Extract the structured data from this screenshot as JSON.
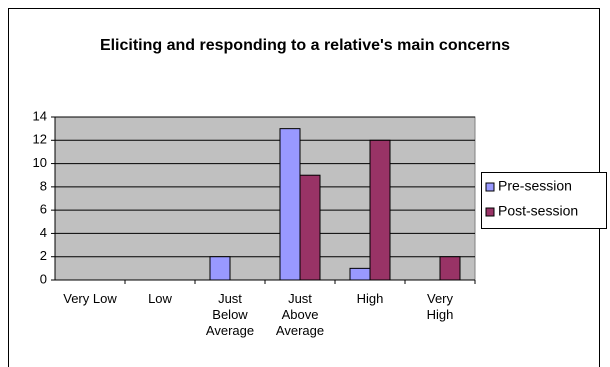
{
  "chart_data": {
    "type": "bar",
    "title": "Eliciting and responding to a relative's main concerns",
    "categories": [
      "Very Low",
      "Low",
      "Just Below Average",
      "Just Above Average",
      "High",
      "Very High"
    ],
    "series": [
      {
        "name": "Pre-session",
        "color": "#9999ff",
        "values": [
          0,
          0,
          2,
          13,
          1,
          0
        ]
      },
      {
        "name": "Post-session",
        "color": "#993366",
        "values": [
          0,
          0,
          0,
          9,
          12,
          2
        ]
      }
    ],
    "ylim": [
      0,
      14
    ],
    "yticks": [
      0,
      2,
      4,
      6,
      8,
      10,
      12,
      14
    ],
    "grid": true,
    "legend": "right"
  }
}
